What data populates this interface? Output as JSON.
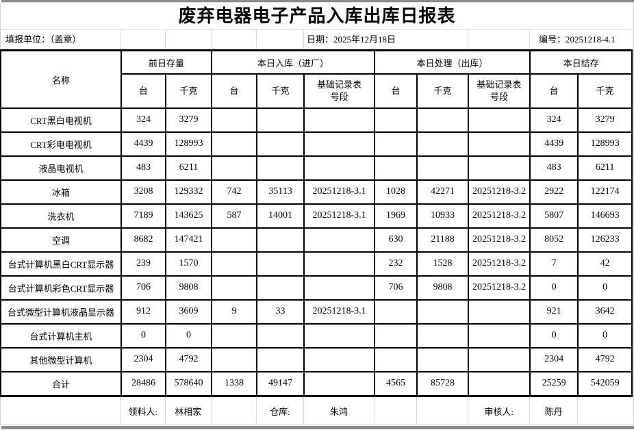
{
  "title": "废弃电器电子产品入库出库日报表",
  "info": {
    "unit_label": "填报单位：（盖章）",
    "date": "日期：2025年12月18日",
    "code": "编号：20251218-4.1"
  },
  "table": {
    "name_header": "名称",
    "groups": [
      {
        "label": "前日存量"
      },
      {
        "label": "本日入库（进厂）"
      },
      {
        "label": "本日处理（出库）"
      },
      {
        "label": "本日结存"
      }
    ],
    "sub_headers": [
      "台",
      "千克",
      "台",
      "千克",
      "基础记录表\n号段",
      "台",
      "千克",
      "基础记录表\n号段",
      "台",
      "千克"
    ],
    "rows": [
      {
        "name": "CRT黑白电视机",
        "values": [
          "324",
          "3279",
          "",
          "",
          "",
          "",
          "",
          "",
          "324",
          "3279"
        ]
      },
      {
        "name": "CRT彩电电视机",
        "values": [
          "4439",
          "128993",
          "",
          "",
          "",
          "",
          "",
          "",
          "4439",
          "128993"
        ]
      },
      {
        "name": "液晶电视机",
        "values": [
          "483",
          "6211",
          "",
          "",
          "",
          "",
          "",
          "",
          "483",
          "6211"
        ]
      },
      {
        "name": "冰箱",
        "values": [
          "3208",
          "129332",
          "742",
          "35113",
          "20251218-3.1",
          "1028",
          "42271",
          "20251218-3.2",
          "2922",
          "122174"
        ]
      },
      {
        "name": "洗衣机",
        "values": [
          "7189",
          "143625",
          "587",
          "14001",
          "20251218-3.1",
          "1969",
          "10933",
          "20251218-3.2",
          "5807",
          "146693"
        ]
      },
      {
        "name": "空调",
        "values": [
          "8682",
          "147421",
          "",
          "",
          "",
          "630",
          "21188",
          "20251218-3.2",
          "8052",
          "126233"
        ]
      },
      {
        "name": "台式计算机黑白CRT显示器",
        "values": [
          "239",
          "1570",
          "",
          "",
          "",
          "232",
          "1528",
          "20251218-3.2",
          "7",
          "42"
        ]
      },
      {
        "name": "台式计算机彩色CRT显示器",
        "values": [
          "706",
          "9808",
          "",
          "",
          "",
          "706",
          "9808",
          "20251218-3.2",
          "0",
          "0"
        ]
      },
      {
        "name": "台式微型计算机液晶显示器",
        "values": [
          "912",
          "3609",
          "9",
          "33",
          "20251218-3.1",
          "",
          "",
          "",
          "921",
          "3642"
        ]
      },
      {
        "name": "台式计算机主机",
        "values": [
          "0",
          "0",
          "",
          "",
          "",
          "",
          "",
          "",
          "0",
          "0"
        ]
      },
      {
        "name": "其他微型计算机",
        "values": [
          "2304",
          "4792",
          "",
          "",
          "",
          "",
          "",
          "",
          "2304",
          "4792"
        ]
      },
      {
        "name": "合计",
        "values": [
          "28486",
          "578640",
          "1338",
          "49147",
          "",
          "4565",
          "85728",
          "",
          "25259",
          "542059"
        ]
      }
    ]
  },
  "footer": {
    "cells": [
      "",
      "领料人:",
      "林相家",
      "",
      "仓库:",
      "朱鸿",
      "",
      "",
      "审核人:",
      "陈丹",
      ""
    ]
  }
}
